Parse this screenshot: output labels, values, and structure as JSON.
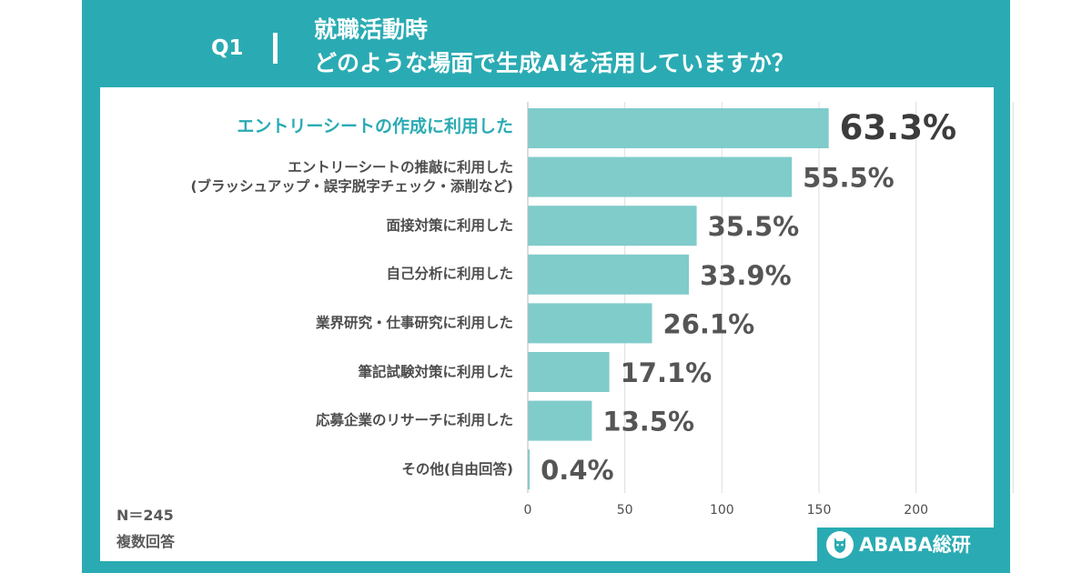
{
  "header": {
    "question": "Q1",
    "title_line1": "就職活動時",
    "title_line2": "どのような場面で生成AIを活用していますか？"
  },
  "notes": {
    "n": "N＝245",
    "multiple": "複数回答"
  },
  "logo": {
    "text": "ABABA総研",
    "icon": "alpaca-icon"
  },
  "colors": {
    "accent": "#2aabb3",
    "bar": "#7fcccb",
    "label": "#4d4d4d",
    "grid": "#dddddd"
  },
  "chart_data": {
    "type": "bar",
    "orientation": "horizontal",
    "title": "",
    "xlabel": "",
    "ylabel": "",
    "xlim": [
      0,
      250
    ],
    "xticks": [
      0,
      50,
      100,
      150,
      200
    ],
    "grid": true,
    "categories": [
      [
        "エントリーシートの作成に利用した"
      ],
      [
        "エントリーシートの推敲に利用した",
        "(ブラッシュアップ・誤字脱字チェック・添削など)"
      ],
      [
        "面接対策に利用した"
      ],
      [
        "自己分析に利用した"
      ],
      [
        "業界研究・仕事研究に利用した"
      ],
      [
        "筆記試験対策に利用した"
      ],
      [
        "応募企業のリサーチに利用した"
      ],
      [
        "その他(自由回答)"
      ]
    ],
    "counts": [
      155,
      136,
      87,
      83,
      64,
      42,
      33,
      1
    ],
    "labels": [
      "63.3%",
      "55.5%",
      "35.5%",
      "33.9%",
      "26.1%",
      "17.1%",
      "13.5%",
      "0.4%"
    ]
  }
}
